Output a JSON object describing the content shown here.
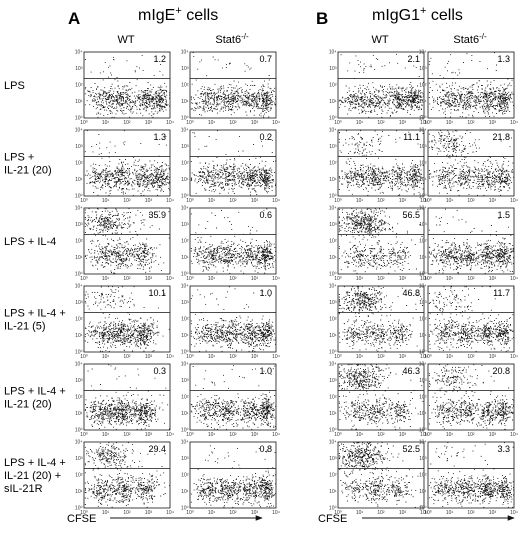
{
  "panels": [
    {
      "letter": "A",
      "title_html": "mIgE+ cells",
      "title_base": "mIgE",
      "title_sup": "+",
      "title_rest": " cells",
      "columns": [
        "WT",
        "Stat6-/-"
      ],
      "xlabel": "CFSE"
    },
    {
      "letter": "B",
      "title_base": "mIgG1",
      "title_sup": "+",
      "title_rest": " cells",
      "columns": [
        "WT",
        "Stat6-/-"
      ],
      "xlabel": "CFSE"
    }
  ],
  "column_head_wt": "WT",
  "column_head_stat6_base": "Stat6",
  "column_head_stat6_sup": "-/-",
  "rows": [
    {
      "label_lines": [
        "LPS"
      ]
    },
    {
      "label_lines": [
        "LPS +",
        "IL-21 (20)"
      ]
    },
    {
      "label_lines": [
        "LPS + IL-4"
      ]
    },
    {
      "label_lines": [
        "LPS + IL-4 +",
        "IL-21 (5)"
      ]
    },
    {
      "label_lines": [
        "LPS + IL-4 +",
        "IL-21 (20)"
      ]
    },
    {
      "label_lines": [
        "LPS + IL-4 +",
        "IL-21 (20) +",
        "sIL-21R"
      ]
    }
  ],
  "axis_ticks": [
    "10⁰",
    "10¹",
    "10²",
    "10³",
    "10⁴"
  ],
  "chart_data": {
    "type": "scatter",
    "description_units": "percent of cells above gate",
    "panels": [
      "mIgE+ cells",
      "mIgG1+ cells"
    ],
    "columns": [
      "WT",
      "Stat6-/-"
    ],
    "rows": [
      "LPS",
      "LPS + IL-21 (20)",
      "LPS + IL-4",
      "LPS + IL-4 + IL-21 (5)",
      "LPS + IL-4 + IL-21 (20)",
      "LPS + IL-4 + IL-21 (20) + sIL-21R"
    ],
    "percentages": {
      "mIgE": {
        "WT": [
          "1.2",
          "1.3",
          "35.9",
          "10.1",
          "0.3",
          "29.4"
        ],
        "Stat6-/-": [
          "0.7",
          "0.2",
          "0.6",
          "1.0",
          "1.0",
          "0.8"
        ]
      },
      "mIgG1": {
        "WT": [
          "2.1",
          "11.1",
          "56.5",
          "46.8",
          "46.3",
          "52.5"
        ],
        "Stat6-/-": [
          "1.3",
          "21.8",
          "1.5",
          "11.7",
          "20.8",
          "3.3"
        ]
      }
    },
    "xlabel": "CFSE",
    "xlim": [
      0,
      4
    ],
    "ylim": [
      0,
      4
    ],
    "x_scale": "log",
    "y_scale": "log"
  }
}
